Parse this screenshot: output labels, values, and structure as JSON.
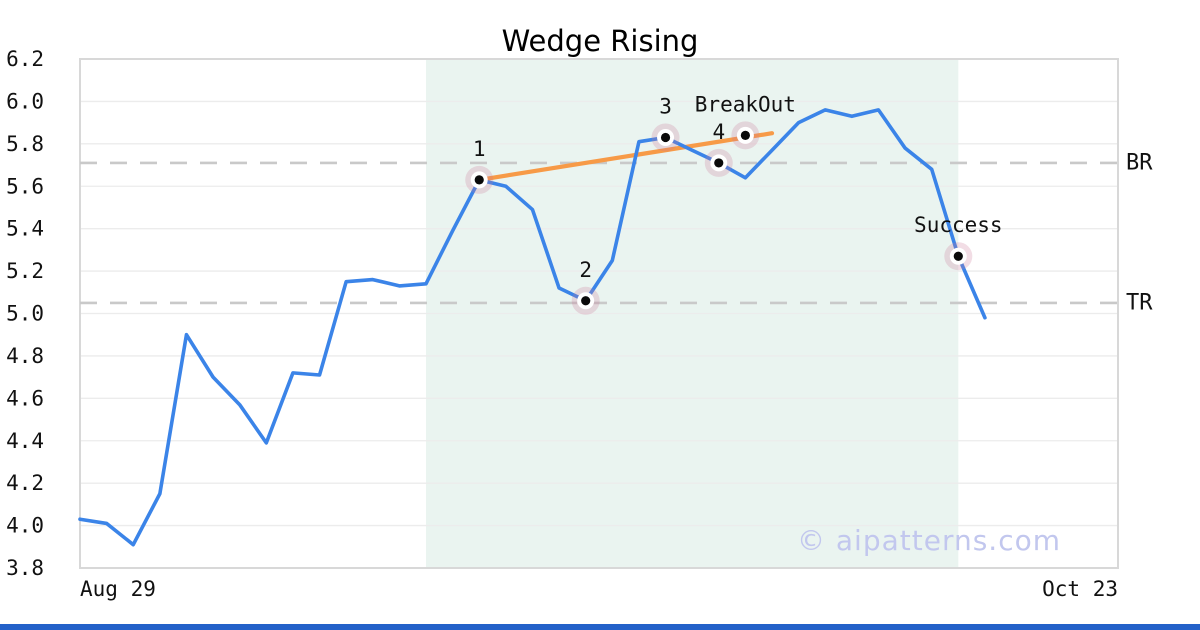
{
  "chart_data": {
    "type": "line",
    "title": "Wedge Rising",
    "xlabel": "",
    "ylabel": "",
    "xlim": [
      0,
      39
    ],
    "ylim": [
      3.8,
      6.2
    ],
    "x_tick_labels": [
      "Aug 29",
      "Oct 23"
    ],
    "y_ticks": [
      3.8,
      4.0,
      4.2,
      4.4,
      4.6,
      4.8,
      5.0,
      5.2,
      5.4,
      5.6,
      5.8,
      6.0,
      6.2
    ],
    "grid_values": [
      4.0,
      4.2,
      4.4,
      4.6,
      4.8,
      5.0,
      5.2,
      5.4,
      5.6,
      5.8,
      6.0
    ],
    "grid": true,
    "legend": false,
    "x": [
      0,
      1,
      2,
      3,
      4,
      5,
      6,
      7,
      8,
      9,
      10,
      11,
      12,
      13,
      14,
      15,
      16,
      17,
      18,
      19,
      20,
      21,
      22,
      23,
      24,
      25,
      26,
      27,
      28,
      29,
      30,
      31,
      32,
      33,
      34
    ],
    "series": [
      {
        "name": "price",
        "values": [
          4.03,
          4.01,
          3.91,
          4.15,
          4.9,
          4.7,
          4.57,
          4.39,
          4.72,
          4.71,
          5.15,
          5.16,
          5.13,
          5.14,
          5.39,
          5.63,
          5.6,
          5.49,
          5.12,
          5.06,
          5.25,
          5.81,
          5.83,
          5.77,
          5.71,
          5.64,
          5.77,
          5.9,
          5.96,
          5.93,
          5.96,
          5.78,
          5.68,
          5.27,
          4.98
        ]
      }
    ],
    "trendline": {
      "x1": 15,
      "y1": 5.63,
      "x2": 26,
      "y2": 5.85
    },
    "shaded_region": {
      "x_start": 13,
      "x_end": 33
    },
    "hlines": [
      {
        "label": "BR",
        "y": 5.71
      },
      {
        "label": "TR",
        "y": 5.05
      }
    ],
    "annotations": [
      {
        "label": "1",
        "x": 15,
        "y": 5.63
      },
      {
        "label": "2",
        "x": 19,
        "y": 5.06
      },
      {
        "label": "3",
        "x": 22,
        "y": 5.83
      },
      {
        "label": "4",
        "x": 24,
        "y": 5.71
      },
      {
        "label": "BreakOut",
        "x": 25,
        "y": 5.84
      },
      {
        "label": "Success",
        "x": 33,
        "y": 5.27
      }
    ],
    "watermark": "© aipatterns.com",
    "colors": {
      "line": "#3b84e8",
      "trendline": "#f79a47",
      "shade": "#eaf4f0",
      "halo": "rgba(205,120,150,0.25)",
      "marker_ring": "#ffffff",
      "marker_dot": "#0a0a0a",
      "dashed": "#c9c9c9",
      "grid": "#ececec",
      "frame": "#d8d8d8",
      "text": "#111111",
      "watermark": "#c2c7ee",
      "accent_bar": "#2361c9"
    }
  }
}
